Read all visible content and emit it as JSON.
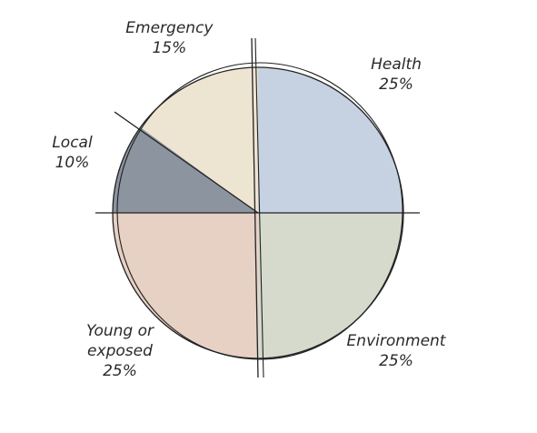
{
  "chart_data": {
    "type": "pie",
    "categories": [
      "Health",
      "Environment",
      "Young or exposed",
      "Local",
      "Emergency"
    ],
    "values": [
      25,
      25,
      25,
      10,
      15
    ],
    "value_labels": [
      "25%",
      "25%",
      "25%",
      "10%",
      "15%"
    ],
    "colors": [
      "#c6d2e1",
      "#d6dacd",
      "#e7d0c4",
      "#8b949f",
      "#eee4d2"
    ]
  }
}
